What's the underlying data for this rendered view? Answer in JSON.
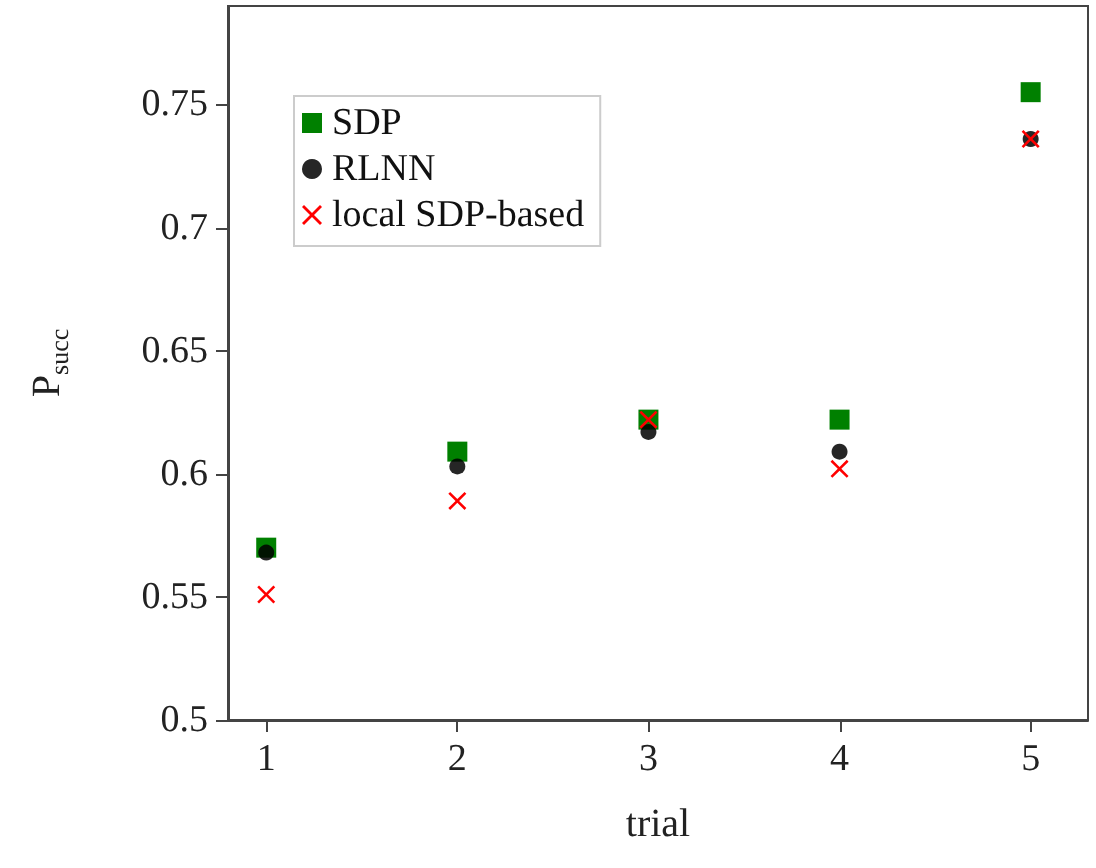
{
  "chart_data": {
    "type": "scatter",
    "xlabel": "trial",
    "ylabel": "P$_{succ}$",
    "x": [
      1,
      2,
      3,
      4,
      5
    ],
    "xlim": [
      0.8,
      5.3
    ],
    "xticks": [
      1,
      2,
      3,
      4,
      5
    ],
    "ylim": [
      0.5,
      0.79
    ],
    "yticks": [
      0.5,
      0.55,
      0.6,
      0.65,
      0.7,
      0.75
    ],
    "legend": "top left",
    "grid": false,
    "series": [
      {
        "name": "SDP",
        "color": "#008000",
        "marker": "square",
        "values": [
          0.57,
          0.609,
          0.622,
          0.622,
          0.755
        ]
      },
      {
        "name": "RLNN",
        "color": "#000000",
        "marker": "circle",
        "values": [
          0.568,
          0.603,
          0.617,
          0.609,
          0.736
        ]
      },
      {
        "name": "local SDP-based",
        "color": "#ff0000",
        "marker": "cross",
        "values": [
          0.551,
          0.589,
          0.622,
          0.602,
          0.736
        ]
      }
    ]
  }
}
